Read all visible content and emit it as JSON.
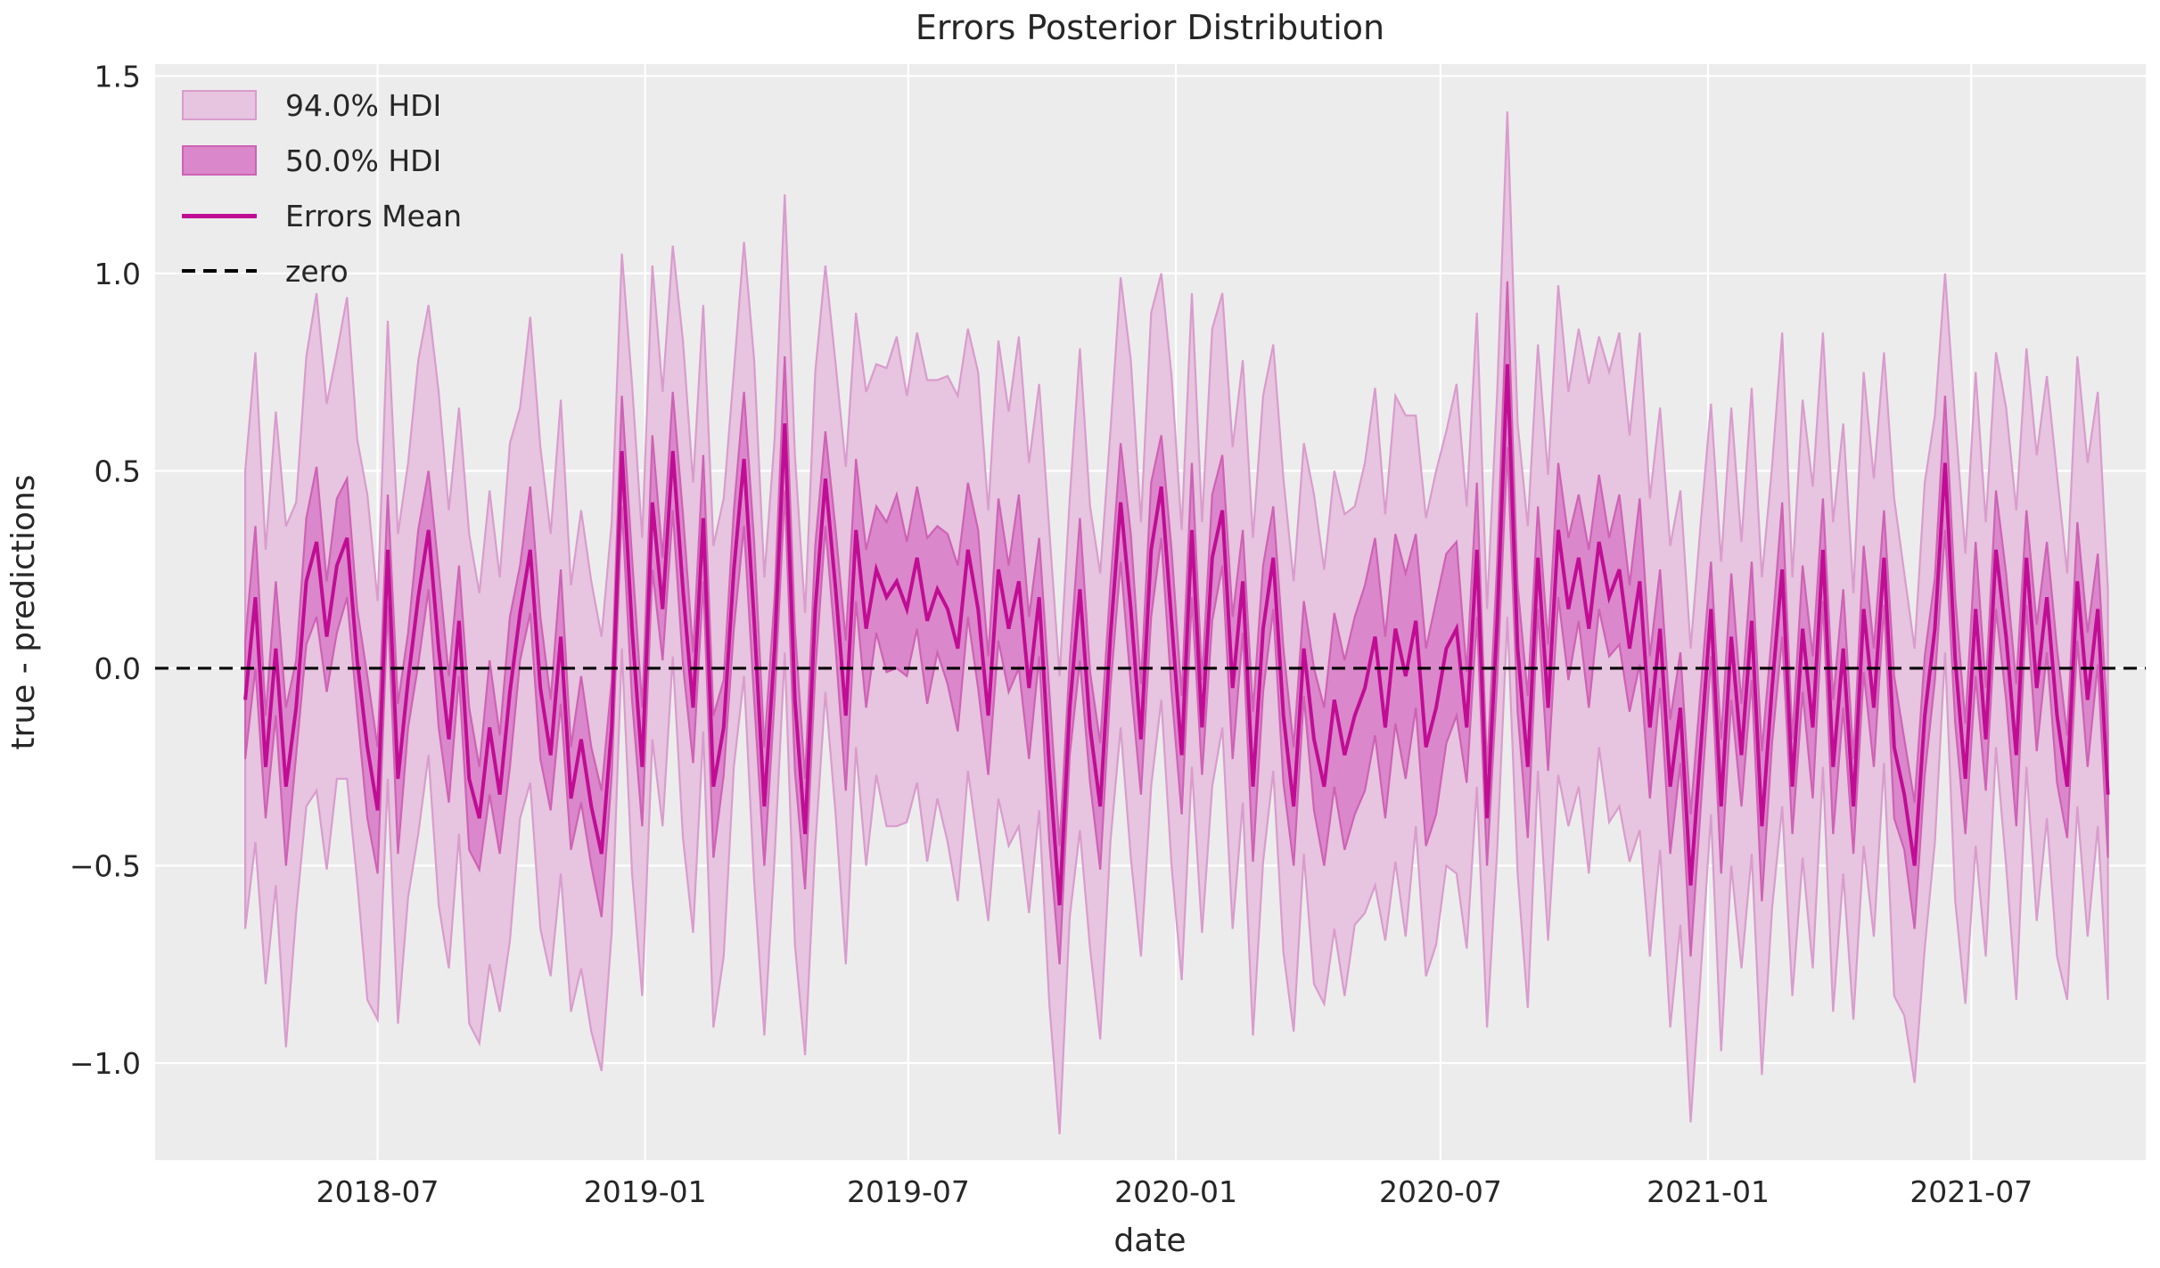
{
  "chart": {
    "plot_bg": "#ececec",
    "grid_color": "#ffffff",
    "text_color": "#262626",
    "legend": {
      "items": [
        {
          "label": "94.0% HDI",
          "kind": "patch",
          "fill": "#e7c4df",
          "edge": "#d99ccd"
        },
        {
          "label": "50.0% HDI",
          "kind": "patch",
          "fill": "#db87cb",
          "edge": "#ce62b5"
        },
        {
          "label": "Errors Mean",
          "kind": "line",
          "color": "#c00d94"
        },
        {
          "label": "zero",
          "kind": "dashed-line",
          "color": "#000000"
        }
      ]
    }
  },
  "chart_data": {
    "type": "area",
    "title": "Errors Posterior Distribution",
    "xlabel": "date",
    "ylabel": "true - predictions",
    "grid": true,
    "legend_position": "upper left",
    "x_start": "2018-04-01",
    "x_freq_days": 7,
    "n_points": 184,
    "xlim": [
      "2018-01-29",
      "2021-10-29"
    ],
    "ylim": [
      -1.246,
      1.53
    ],
    "x_ticks": [
      {
        "value": "2018-07-01",
        "label": "2018-07"
      },
      {
        "value": "2019-01-01",
        "label": "2019-01"
      },
      {
        "value": "2019-07-01",
        "label": "2019-07"
      },
      {
        "value": "2020-01-01",
        "label": "2020-01"
      },
      {
        "value": "2020-07-01",
        "label": "2020-07"
      },
      {
        "value": "2021-01-01",
        "label": "2021-01"
      },
      {
        "value": "2021-07-01",
        "label": "2021-07"
      }
    ],
    "y_ticks": [
      {
        "value": -1.0,
        "label": "−1.0"
      },
      {
        "value": -0.5,
        "label": "−0.5"
      },
      {
        "value": 0.0,
        "label": "0.0"
      },
      {
        "value": 0.5,
        "label": "0.5"
      },
      {
        "value": 1.0,
        "label": "1.0"
      },
      {
        "value": 1.5,
        "label": "1.5"
      }
    ],
    "zero_line": 0.0,
    "series": [
      {
        "name": "Errors Mean",
        "kind": "line",
        "color": "#c00d94",
        "values": [
          -0.08,
          0.18,
          -0.25,
          0.05,
          -0.3,
          -0.1,
          0.22,
          0.32,
          0.08,
          0.26,
          0.33,
          0.02,
          -0.2,
          -0.36,
          0.3,
          -0.28,
          -0.03,
          0.18,
          0.35,
          0.05,
          -0.18,
          0.12,
          -0.28,
          -0.38,
          -0.15,
          -0.32,
          -0.06,
          0.14,
          0.3,
          -0.05,
          -0.22,
          0.08,
          -0.33,
          -0.18,
          -0.35,
          -0.47,
          -0.15,
          0.55,
          0.1,
          -0.25,
          0.42,
          0.15,
          0.55,
          0.2,
          -0.1,
          0.38,
          -0.3,
          -0.15,
          0.25,
          0.53,
          0.12,
          -0.35,
          0.05,
          0.62,
          -0.08,
          -0.42,
          0.15,
          0.48,
          0.2,
          -0.12,
          0.35,
          0.1,
          0.25,
          0.18,
          0.22,
          0.15,
          0.28,
          0.12,
          0.2,
          0.15,
          0.05,
          0.3,
          0.15,
          -0.12,
          0.25,
          0.1,
          0.22,
          -0.05,
          0.18,
          -0.25,
          -0.6,
          -0.1,
          0.2,
          -0.15,
          -0.35,
          0.08,
          0.42,
          0.15,
          -0.18,
          0.3,
          0.46,
          0.12,
          -0.22,
          0.35,
          -0.15,
          0.28,
          0.4,
          -0.05,
          0.22,
          -0.3,
          0.1,
          0.28,
          -0.12,
          -0.35,
          0.05,
          -0.18,
          -0.3,
          -0.08,
          -0.22,
          -0.12,
          -0.05,
          0.08,
          -0.15,
          0.1,
          -0.02,
          0.12,
          -0.2,
          -0.1,
          0.05,
          0.1,
          -0.15,
          0.3,
          -0.38,
          0.12,
          0.77,
          0.05,
          -0.25,
          0.28,
          -0.1,
          0.35,
          0.15,
          0.28,
          0.1,
          0.32,
          0.18,
          0.25,
          0.05,
          0.22,
          -0.15,
          0.1,
          -0.3,
          -0.1,
          -0.55,
          -0.2,
          0.15,
          -0.35,
          0.08,
          -0.22,
          0.12,
          -0.4,
          -0.05,
          0.25,
          -0.3,
          0.1,
          -0.15,
          0.3,
          -0.25,
          0.05,
          -0.35,
          0.15,
          -0.1,
          0.28,
          -0.2,
          -0.32,
          -0.5,
          -0.12,
          0.1,
          0.52,
          0.02,
          -0.28,
          0.15,
          -0.18,
          0.3,
          0.08,
          -0.22,
          0.28,
          -0.05,
          0.18,
          -0.12,
          -0.3,
          0.22,
          -0.08,
          0.15,
          -0.32
        ]
      },
      {
        "name": "94.0% HDI",
        "kind": "band-half-width-around-mean",
        "fill": "#e7c4df",
        "edge": "#d99ccd",
        "half_widths": [
          0.58,
          0.62,
          0.55,
          0.6,
          0.66,
          0.52,
          0.57,
          0.63,
          0.59,
          0.54,
          0.61,
          0.56,
          0.64,
          0.53,
          0.58,
          0.62,
          0.55,
          0.6,
          0.57,
          0.65,
          0.58,
          0.54,
          0.62,
          0.57,
          0.6,
          0.55,
          0.63,
          0.52,
          0.59,
          0.61,
          0.56,
          0.6,
          0.54,
          0.58,
          0.57,
          0.55,
          0.52,
          0.5,
          0.62,
          0.58,
          0.6,
          0.55,
          0.52,
          0.63,
          0.57,
          0.54,
          0.61,
          0.58,
          0.5,
          0.55,
          0.66,
          0.58,
          0.53,
          0.58,
          0.62,
          0.56,
          0.6,
          0.54,
          0.57,
          0.63,
          0.55,
          0.6,
          0.52,
          0.58,
          0.62,
          0.54,
          0.57,
          0.61,
          0.53,
          0.59,
          0.64,
          0.56,
          0.6,
          0.52,
          0.58,
          0.55,
          0.62,
          0.57,
          0.54,
          0.6,
          0.58,
          0.53,
          0.61,
          0.56,
          0.59,
          0.52,
          0.57,
          0.63,
          0.55,
          0.6,
          0.54,
          0.62,
          0.57,
          0.6,
          0.52,
          0.58,
          0.55,
          0.61,
          0.56,
          0.63,
          0.59,
          0.54,
          0.6,
          0.57,
          0.52,
          0.62,
          0.55,
          0.58,
          0.61,
          0.53,
          0.57,
          0.63,
          0.54,
          0.59,
          0.66,
          0.52,
          0.58,
          0.6,
          0.55,
          0.62,
          0.56,
          0.6,
          0.53,
          0.58,
          0.64,
          0.57,
          0.61,
          0.54,
          0.59,
          0.62,
          0.55,
          0.58,
          0.62,
          0.52,
          0.57,
          0.6,
          0.54,
          0.63,
          0.58,
          0.56,
          0.61,
          0.55,
          0.6,
          0.57,
          0.52,
          0.62,
          0.58,
          0.54,
          0.59,
          0.63,
          0.56,
          0.6,
          0.53,
          0.58,
          0.61,
          0.55,
          0.62,
          0.57,
          0.54,
          0.6,
          0.58,
          0.52,
          0.63,
          0.56,
          0.55,
          0.59,
          0.54,
          0.48,
          0.61,
          0.57,
          0.6,
          0.55,
          0.5,
          0.58,
          0.62,
          0.53,
          0.59,
          0.56,
          0.61,
          0.54,
          0.57,
          0.6,
          0.55,
          0.52
        ]
      },
      {
        "name": "50.0% HDI",
        "kind": "band-half-width-around-mean",
        "fill": "#db87cb",
        "edge": "#ce62b5",
        "half_widths": [
          0.15,
          0.18,
          0.13,
          0.17,
          0.2,
          0.12,
          0.16,
          0.19,
          0.14,
          0.17,
          0.15,
          0.13,
          0.18,
          0.16,
          0.14,
          0.19,
          0.12,
          0.17,
          0.15,
          0.2,
          0.16,
          0.14,
          0.18,
          0.13,
          0.17,
          0.15,
          0.19,
          0.12,
          0.16,
          0.18,
          0.14,
          0.17,
          0.13,
          0.16,
          0.15,
          0.16,
          0.12,
          0.14,
          0.18,
          0.15,
          0.17,
          0.13,
          0.15,
          0.19,
          0.14,
          0.16,
          0.18,
          0.12,
          0.15,
          0.17,
          0.2,
          0.15,
          0.13,
          0.17,
          0.18,
          0.14,
          0.16,
          0.12,
          0.15,
          0.19,
          0.18,
          0.2,
          0.16,
          0.19,
          0.22,
          0.17,
          0.18,
          0.21,
          0.16,
          0.19,
          0.21,
          0.17,
          0.2,
          0.15,
          0.18,
          0.16,
          0.22,
          0.18,
          0.15,
          0.19,
          0.15,
          0.12,
          0.18,
          0.14,
          0.16,
          0.13,
          0.15,
          0.19,
          0.14,
          0.17,
          0.13,
          0.18,
          0.15,
          0.17,
          0.12,
          0.16,
          0.14,
          0.18,
          0.13,
          0.19,
          0.16,
          0.13,
          0.17,
          0.15,
          0.12,
          0.18,
          0.2,
          0.22,
          0.24,
          0.25,
          0.26,
          0.25,
          0.23,
          0.24,
          0.26,
          0.22,
          0.25,
          0.27,
          0.24,
          0.22,
          0.14,
          0.17,
          0.12,
          0.15,
          0.21,
          0.16,
          0.18,
          0.13,
          0.16,
          0.17,
          0.18,
          0.16,
          0.2,
          0.17,
          0.15,
          0.19,
          0.16,
          0.21,
          0.18,
          0.15,
          0.17,
          0.14,
          0.18,
          0.15,
          0.12,
          0.17,
          0.16,
          0.13,
          0.15,
          0.19,
          0.14,
          0.17,
          0.12,
          0.16,
          0.18,
          0.13,
          0.17,
          0.15,
          0.12,
          0.16,
          0.15,
          0.12,
          0.18,
          0.14,
          0.16,
          0.15,
          0.13,
          0.17,
          0.16,
          0.14,
          0.17,
          0.13,
          0.15,
          0.16,
          0.18,
          0.12,
          0.16,
          0.14,
          0.17,
          0.13,
          0.15,
          0.17,
          0.14,
          0.16
        ]
      }
    ]
  }
}
